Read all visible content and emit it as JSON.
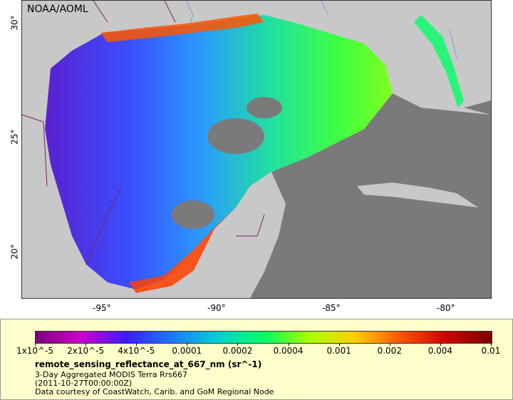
{
  "map": {
    "org_label": "NOAA/AOML",
    "lat_ticks": [
      "30°",
      "25°",
      "20°"
    ],
    "lon_ticks": [
      "-95°",
      "-90°",
      "-85°",
      "-80°"
    ],
    "colors": {
      "land": "#7a7a7a",
      "ocean_nodata": "#c8c8c8",
      "border": "#7a1f6a",
      "river": "#6aa3d8"
    }
  },
  "legend": {
    "tick_labels": [
      "1x10^-5",
      "2x10^-5",
      "4x10^-5",
      "0.0001",
      "0.0002",
      "0.0004",
      "0.001",
      "0.002",
      "0.004",
      "0.01"
    ],
    "colors": [
      "#7a007a",
      "#cc00cc",
      "#3a1cff",
      "#1a7aff",
      "#00d0d0",
      "#00ff66",
      "#aaff00",
      "#ffcc00",
      "#ff5500",
      "#cc0000",
      "#7a0000"
    ],
    "title": "remote_sensing_reflectance_at_667_nm (sr^-1)",
    "line1": "3-Day Aggregated MODIS Terra Rrs667",
    "line2": "(2011-10-27T00:00:00Z)",
    "line3": "Data courtesy of CoastWatch, Carib. and GoM Regional Node"
  }
}
